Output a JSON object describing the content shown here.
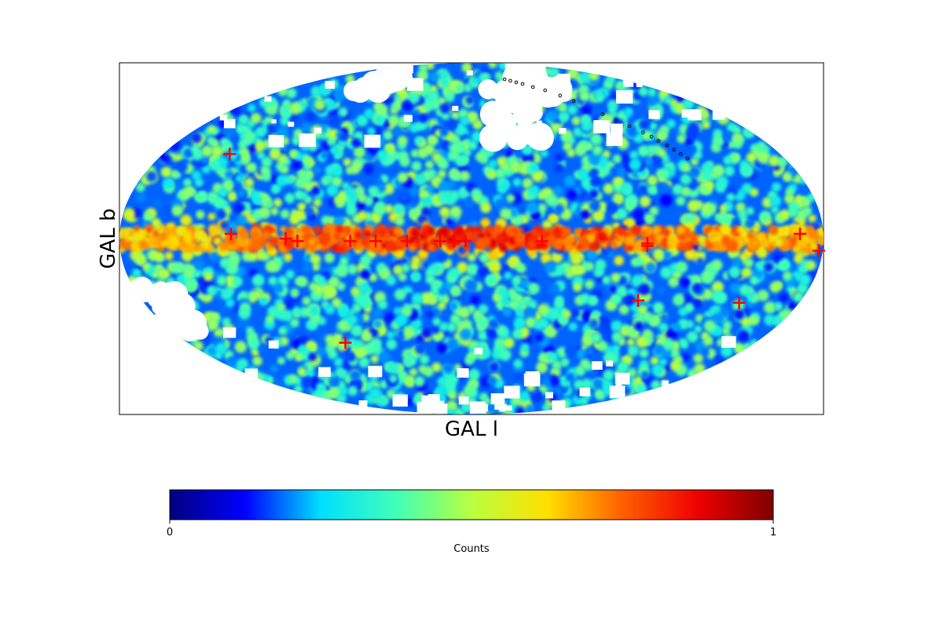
{
  "chart_data": {
    "type": "heatmap",
    "projection": "mollweide",
    "coordinate_system": "galactic",
    "xlabel": "GAL l",
    "ylabel": "GAL b",
    "colormap": "jet",
    "colorbar": {
      "label": "Counts",
      "min": 0,
      "max": 1,
      "ticks": [
        "0",
        "1"
      ],
      "colors": [
        "#00007f",
        "#0000ff",
        "#00e0ff",
        "#40ffb8",
        "#b8ff40",
        "#ffe000",
        "#ff6000",
        "#ee0000",
        "#7f0000"
      ]
    },
    "grid": false,
    "sources": {
      "marker": "plus",
      "color": "#ff0000",
      "points": [
        {
          "l": 141,
          "b": 36
        },
        {
          "l": 123,
          "b": 2
        },
        {
          "l": 95,
          "b": 0
        },
        {
          "l": 89,
          "b": -1
        },
        {
          "l": 62,
          "b": -1
        },
        {
          "l": 49,
          "b": -1
        },
        {
          "l": 33,
          "b": -1
        },
        {
          "l": 16,
          "b": -1
        },
        {
          "l": 9,
          "b": -1
        },
        {
          "l": 3,
          "b": -1
        },
        {
          "l": -36,
          "b": -1
        },
        {
          "l": -90,
          "b": -2
        },
        {
          "l": -90,
          "b": -3
        },
        {
          "l": -168,
          "b": 2
        },
        {
          "l": -178,
          "b": -5
        },
        {
          "l": -91,
          "b": -26
        },
        {
          "l": -147,
          "b": -27
        },
        {
          "l": 80,
          "b": -45
        }
      ]
    },
    "exclusion_dots": {
      "color": "#000000",
      "marker": "open-circle",
      "points": [
        {
          "l": -40,
          "b": 75
        },
        {
          "l": -45,
          "b": 74
        },
        {
          "l": -50,
          "b": 73
        },
        {
          "l": -55,
          "b": 72
        },
        {
          "l": -62,
          "b": 70
        },
        {
          "l": -70,
          "b": 68
        },
        {
          "l": -78,
          "b": 65
        },
        {
          "l": -84,
          "b": 62
        },
        {
          "l": -95,
          "b": 55
        },
        {
          "l": -100,
          "b": 52
        },
        {
          "l": -105,
          "b": 49
        },
        {
          "l": -110,
          "b": 46
        },
        {
          "l": -113,
          "b": 44
        },
        {
          "l": -115,
          "b": 42
        },
        {
          "l": -118,
          "b": 40
        },
        {
          "l": -120,
          "b": 38
        },
        {
          "l": -122,
          "b": 36
        },
        {
          "l": -124,
          "b": 34
        }
      ]
    },
    "empty_regions": [
      {
        "l": -30,
        "b": 55,
        "dl": 20,
        "db": 14
      },
      {
        "l": -70,
        "b": 72,
        "dl": 16,
        "db": 8
      },
      {
        "l": 100,
        "b": 72,
        "dl": 14,
        "db": 6
      },
      {
        "l": 170,
        "b": -30,
        "dl": 10,
        "db": 10
      }
    ]
  }
}
